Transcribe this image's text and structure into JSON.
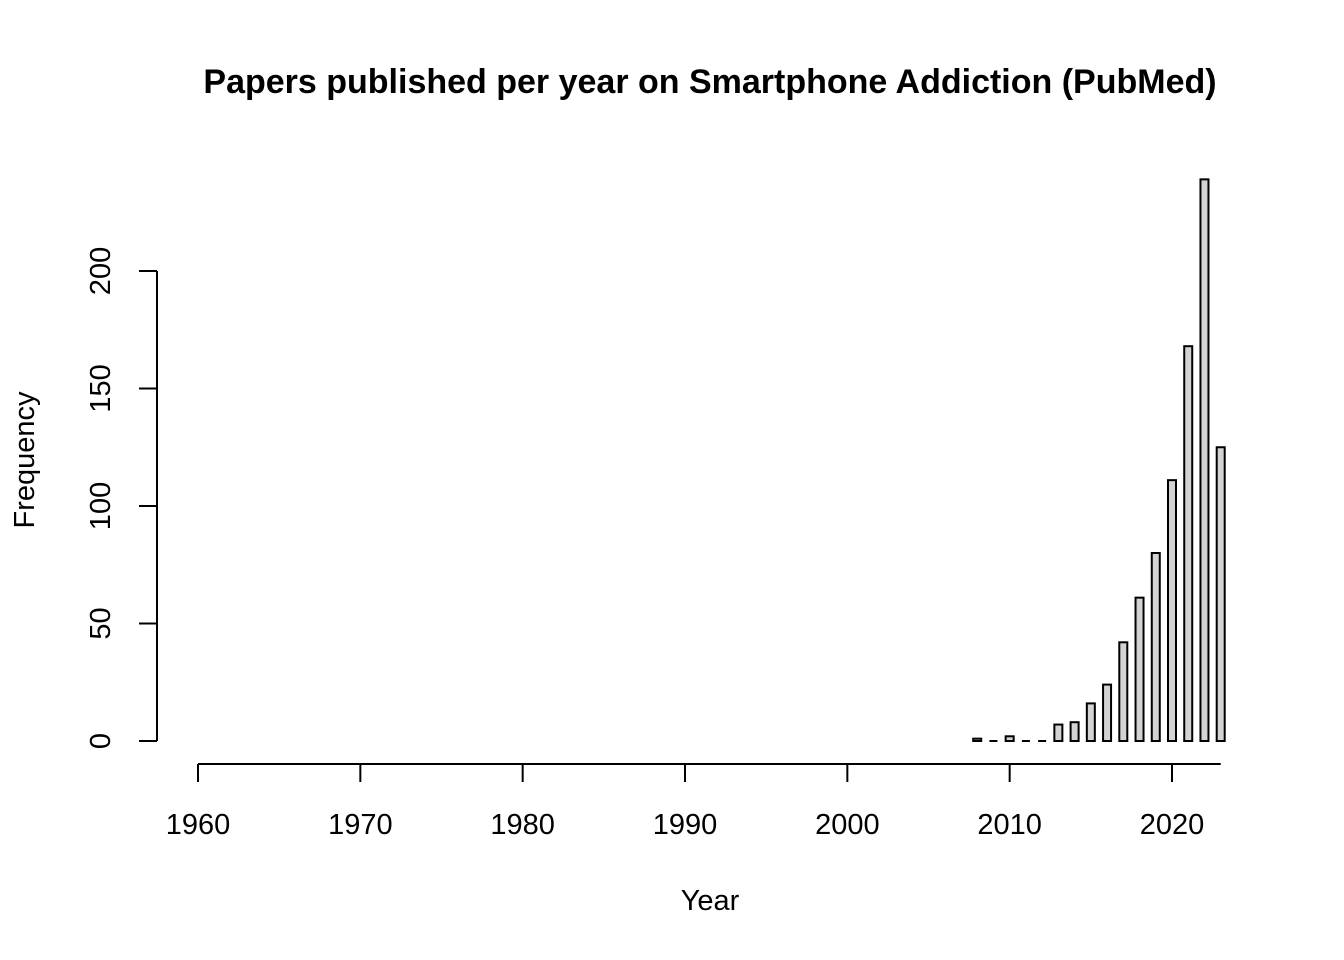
{
  "chart_data": {
    "type": "bar",
    "title": "Papers published per year on Smartphone Addiction (PubMed)",
    "xlabel": "Year",
    "ylabel": "Frequency",
    "x_ticks": [
      "1960",
      "1970",
      "1980",
      "1990",
      "2000",
      "2010",
      "2020"
    ],
    "y_ticks": [
      "0",
      "50",
      "100",
      "150",
      "200"
    ],
    "xlim": [
      1960,
      2023
    ],
    "ylim": [
      0,
      240
    ],
    "bar_fill": "#d3d3d3",
    "bar_stroke": "#000000",
    "grid": false,
    "categories": [
      "2008",
      "2009",
      "2010",
      "2011",
      "2012",
      "2013",
      "2014",
      "2015",
      "2016",
      "2017",
      "2018",
      "2019",
      "2020",
      "2021",
      "2022",
      "2023"
    ],
    "values": [
      1,
      0,
      2,
      0,
      0,
      7,
      8,
      16,
      24,
      42,
      61,
      80,
      111,
      168,
      239,
      125
    ]
  }
}
